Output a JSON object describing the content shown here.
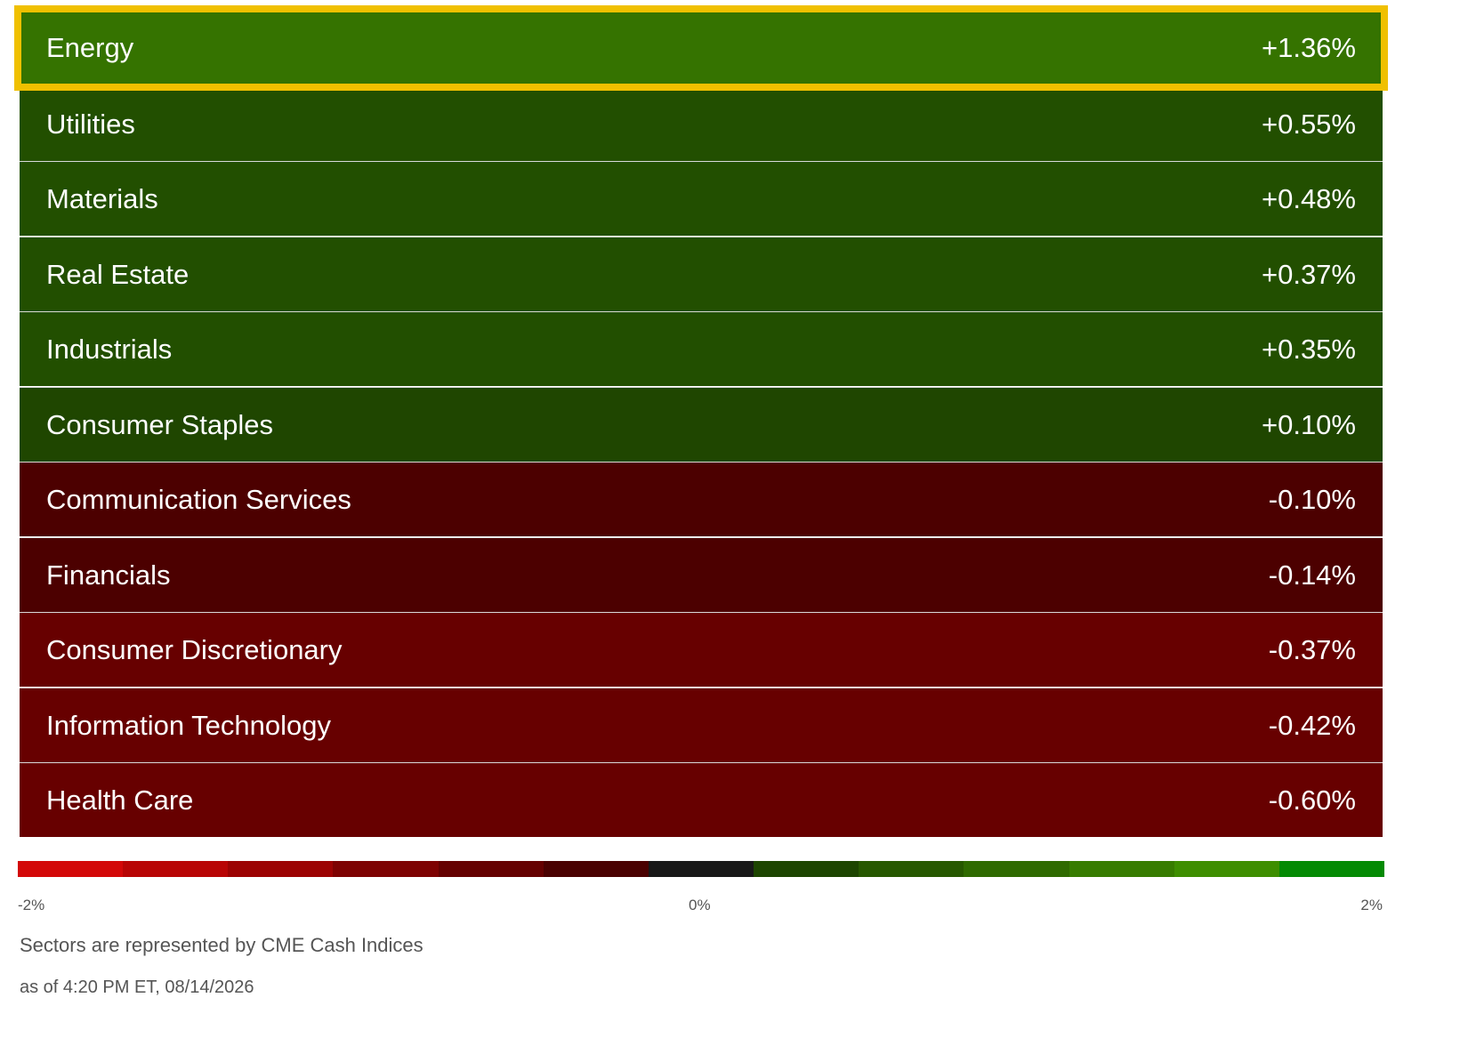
{
  "sectors": [
    {
      "name": "Energy",
      "change": "+1.36%",
      "color": "#357300",
      "selected": true
    },
    {
      "name": "Utilities",
      "change": "+0.55%",
      "color": "#224f00",
      "selected": false
    },
    {
      "name": "Materials",
      "change": "+0.48%",
      "color": "#224f00",
      "selected": false
    },
    {
      "name": "Real Estate",
      "change": "+0.37%",
      "color": "#224f00",
      "selected": false
    },
    {
      "name": "Industrials",
      "change": "+0.35%",
      "color": "#224f00",
      "selected": false
    },
    {
      "name": "Consumer Staples",
      "change": "+0.10%",
      "color": "#1f4600",
      "selected": false
    },
    {
      "name": "Communication Services",
      "change": "-0.10%",
      "color": "#4c0000",
      "selected": false
    },
    {
      "name": "Financials",
      "change": "-0.14%",
      "color": "#4c0000",
      "selected": false
    },
    {
      "name": "Consumer Discretionary",
      "change": "-0.37%",
      "color": "#670000",
      "selected": false
    },
    {
      "name": "Information Technology",
      "change": "-0.42%",
      "color": "#670000",
      "selected": false
    },
    {
      "name": "Health Care",
      "change": "-0.60%",
      "color": "#670000",
      "selected": false
    }
  ],
  "scale": {
    "min_label": "-2%",
    "mid_label": "0%",
    "max_label": "2%",
    "colors": [
      "#d30808",
      "#b80505",
      "#9c0303",
      "#7e0202",
      "#650101",
      "#4a0101",
      "#181818",
      "#1d4500",
      "#275800",
      "#2f6a00",
      "#377c00",
      "#3e8e00",
      "#048a04"
    ]
  },
  "footer": {
    "source_note": "Sectors are represented by CME Cash Indices",
    "timestamp": "as of 4:20 PM ET, 08/14/2026"
  },
  "highlight_color": "#f0c000"
}
